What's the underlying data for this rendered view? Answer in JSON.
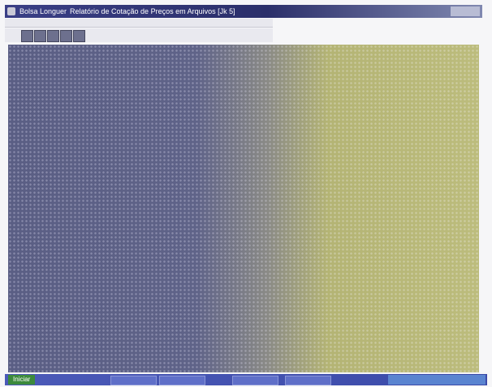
{
  "title_bar": {
    "app": "Bolsa Longuer",
    "document": "Relatório de Cotação de Preços em Arquivos [Jk 5]"
  },
  "taskbar": {
    "start": "Iniciar"
  }
}
